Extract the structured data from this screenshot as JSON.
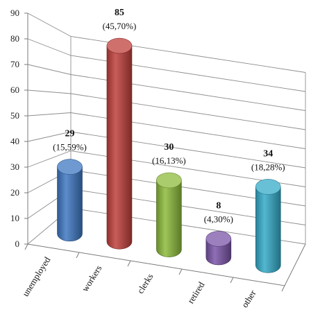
{
  "chart_data": {
    "type": "bar",
    "style": "3d-cylinder",
    "categories": [
      "unemployed",
      "workers",
      "clerks",
      "retired",
      "other"
    ],
    "values": [
      29,
      85,
      30,
      8,
      34
    ],
    "percent_labels": [
      "(15,59%)",
      "(45,70%)",
      "(16,13%)",
      "(4,30%)",
      "(18,28%)"
    ],
    "colors": [
      "#3f78c2",
      "#c0403c",
      "#8dbb3c",
      "#7b55a8",
      "#35abc9"
    ],
    "ylim": [
      0,
      90
    ],
    "yticks": [
      0,
      10,
      20,
      30,
      40,
      50,
      60,
      70,
      80,
      90
    ],
    "grid": true,
    "legend": "none"
  }
}
